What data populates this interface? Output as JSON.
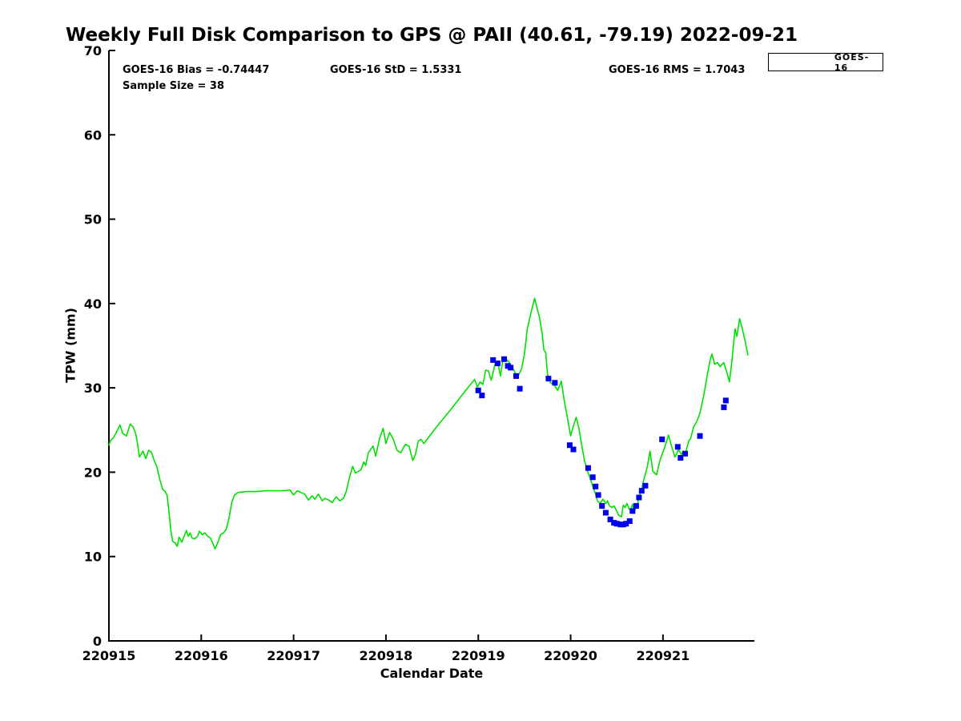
{
  "title": "Weekly Full Disk Comparison to GPS @ PAII (40.61, -79.19) 2022-09-21",
  "annotations": {
    "bias": "GOES-16 Bias = -0.74447",
    "std": "GOES-16 StD = 1.5331",
    "rms": "GOES-16 RMS = 1.7043",
    "sample_size": "Sample Size = 38"
  },
  "legend": {
    "entries": [
      {
        "label": "GOES-16",
        "marker": "square",
        "color": "#0000ee"
      }
    ]
  },
  "colors": {
    "gps_line": "#00e000",
    "goes16_marker": "#0000ee",
    "axis": "#000000",
    "background": "#ffffff"
  },
  "chart_data": {
    "type": "line",
    "title": "Weekly Full Disk Comparison to GPS @ PAII (40.61, -79.19) 2022-09-21",
    "xlabel": "Calendar Date",
    "ylabel": "TPW (mm)",
    "xlim": [
      220915,
      220921.99
    ],
    "ylim": [
      0,
      70
    ],
    "x_ticks": [
      220915,
      220916,
      220917,
      220918,
      220919,
      220920,
      220921
    ],
    "y_ticks": [
      0,
      10,
      20,
      30,
      40,
      50,
      60,
      70
    ],
    "grid": false,
    "legend_position": "top-right",
    "series": [
      {
        "name": "GPS",
        "type": "line",
        "color": "#00e000",
        "points": [
          [
            220915.0,
            23.2
          ],
          [
            220915.02,
            23.8
          ],
          [
            220915.05,
            24.1
          ],
          [
            220915.08,
            24.7
          ],
          [
            220915.12,
            25.6
          ],
          [
            220915.15,
            24.6
          ],
          [
            220915.19,
            24.3
          ],
          [
            220915.23,
            25.7
          ],
          [
            220915.26,
            25.4
          ],
          [
            220915.29,
            24.6
          ],
          [
            220915.31,
            23.4
          ],
          [
            220915.33,
            21.8
          ],
          [
            220915.37,
            22.5
          ],
          [
            220915.4,
            21.6
          ],
          [
            220915.43,
            22.6
          ],
          [
            220915.46,
            22.4
          ],
          [
            220915.49,
            21.4
          ],
          [
            220915.52,
            20.6
          ],
          [
            220915.55,
            19.2
          ],
          [
            220915.58,
            18.0
          ],
          [
            220915.61,
            17.7
          ],
          [
            220915.63,
            17.3
          ],
          [
            220915.65,
            15.4
          ],
          [
            220915.67,
            13.1
          ],
          [
            220915.69,
            11.8
          ],
          [
            220915.72,
            11.6
          ],
          [
            220915.74,
            11.2
          ],
          [
            220915.76,
            12.3
          ],
          [
            220915.79,
            11.7
          ],
          [
            220915.81,
            12.3
          ],
          [
            220915.84,
            13.1
          ],
          [
            220915.86,
            12.4
          ],
          [
            220915.88,
            12.8
          ],
          [
            220915.9,
            12.2
          ],
          [
            220915.93,
            12.1
          ],
          [
            220915.96,
            12.4
          ],
          [
            220915.98,
            13.0
          ],
          [
            220916.01,
            12.6
          ],
          [
            220916.04,
            12.8
          ],
          [
            220916.07,
            12.4
          ],
          [
            220916.1,
            12.2
          ],
          [
            220916.12,
            11.7
          ],
          [
            220916.15,
            10.9
          ],
          [
            220916.18,
            11.7
          ],
          [
            220916.21,
            12.6
          ],
          [
            220916.24,
            12.8
          ],
          [
            220916.27,
            13.2
          ],
          [
            220916.3,
            14.5
          ],
          [
            220916.33,
            16.4
          ],
          [
            220916.36,
            17.3
          ],
          [
            220916.4,
            17.6
          ],
          [
            220916.5,
            17.7
          ],
          [
            220916.6,
            17.7
          ],
          [
            220916.7,
            17.8
          ],
          [
            220916.8,
            17.8
          ],
          [
            220916.9,
            17.8
          ],
          [
            220916.96,
            17.9
          ],
          [
            220917.0,
            17.3
          ],
          [
            220917.04,
            17.8
          ],
          [
            220917.08,
            17.6
          ],
          [
            220917.12,
            17.4
          ],
          [
            220917.16,
            16.7
          ],
          [
            220917.2,
            17.2
          ],
          [
            220917.23,
            16.8
          ],
          [
            220917.27,
            17.4
          ],
          [
            220917.31,
            16.6
          ],
          [
            220917.34,
            16.9
          ],
          [
            220917.38,
            16.7
          ],
          [
            220917.42,
            16.4
          ],
          [
            220917.46,
            17.1
          ],
          [
            220917.5,
            16.6
          ],
          [
            220917.54,
            16.9
          ],
          [
            220917.57,
            17.7
          ],
          [
            220917.61,
            19.6
          ],
          [
            220917.64,
            20.7
          ],
          [
            220917.67,
            19.9
          ],
          [
            220917.7,
            20.1
          ],
          [
            220917.73,
            20.3
          ],
          [
            220917.76,
            21.2
          ],
          [
            220917.78,
            20.8
          ],
          [
            220917.81,
            22.3
          ],
          [
            220917.86,
            23.1
          ],
          [
            220917.89,
            21.9
          ],
          [
            220917.93,
            24.0
          ],
          [
            220917.97,
            25.2
          ],
          [
            220918.0,
            23.4
          ],
          [
            220918.04,
            24.7
          ],
          [
            220918.08,
            23.9
          ],
          [
            220918.12,
            22.6
          ],
          [
            220918.16,
            22.3
          ],
          [
            220918.21,
            23.3
          ],
          [
            220918.25,
            23.1
          ],
          [
            220918.29,
            21.4
          ],
          [
            220918.32,
            22.1
          ],
          [
            220918.35,
            23.7
          ],
          [
            220918.38,
            23.9
          ],
          [
            220918.41,
            23.4
          ],
          [
            220918.55,
            25.4
          ],
          [
            220918.7,
            27.4
          ],
          [
            220918.85,
            29.5
          ],
          [
            220918.96,
            31.0
          ],
          [
            220918.99,
            30.1
          ],
          [
            220919.02,
            30.7
          ],
          [
            220919.05,
            30.4
          ],
          [
            220919.08,
            32.1
          ],
          [
            220919.11,
            32.0
          ],
          [
            220919.14,
            30.9
          ],
          [
            220919.18,
            32.8
          ],
          [
            220919.21,
            33.1
          ],
          [
            220919.24,
            31.4
          ],
          [
            220919.27,
            33.6
          ],
          [
            220919.3,
            33.4
          ],
          [
            220919.33,
            33.1
          ],
          [
            220919.36,
            32.6
          ],
          [
            220919.39,
            32.0
          ],
          [
            220919.41,
            31.5
          ],
          [
            220919.44,
            31.6
          ],
          [
            220919.47,
            32.3
          ],
          [
            220919.5,
            34.0
          ],
          [
            220919.53,
            36.9
          ],
          [
            220919.57,
            38.9
          ],
          [
            220919.61,
            40.6
          ],
          [
            220919.64,
            39.3
          ],
          [
            220919.66,
            38.5
          ],
          [
            220919.69,
            36.6
          ],
          [
            220919.71,
            34.5
          ],
          [
            220919.73,
            34.2
          ],
          [
            220919.75,
            31.6
          ],
          [
            220919.78,
            30.6
          ],
          [
            220919.82,
            30.4
          ],
          [
            220919.86,
            29.7
          ],
          [
            220919.9,
            30.8
          ],
          [
            220919.93,
            28.5
          ],
          [
            220919.96,
            26.8
          ],
          [
            220920.0,
            24.3
          ],
          [
            220920.03,
            25.5
          ],
          [
            220920.06,
            26.5
          ],
          [
            220920.09,
            25.2
          ],
          [
            220920.12,
            23.2
          ],
          [
            220920.15,
            21.4
          ],
          [
            220920.18,
            20.2
          ],
          [
            220920.21,
            19.3
          ],
          [
            220920.24,
            18.3
          ],
          [
            220920.27,
            17.4
          ],
          [
            220920.29,
            16.6
          ],
          [
            220920.32,
            16.3
          ],
          [
            220920.35,
            16.8
          ],
          [
            220920.38,
            16.3
          ],
          [
            220920.4,
            16.6
          ],
          [
            220920.42,
            16.0
          ],
          [
            220920.45,
            15.8
          ],
          [
            220920.47,
            16.0
          ],
          [
            220920.49,
            15.6
          ],
          [
            220920.52,
            14.9
          ],
          [
            220920.55,
            14.7
          ],
          [
            220920.57,
            16.1
          ],
          [
            220920.59,
            15.8
          ],
          [
            220920.61,
            16.3
          ],
          [
            220920.63,
            15.7
          ],
          [
            220920.65,
            15.5
          ],
          [
            220920.67,
            16.2
          ],
          [
            220920.69,
            15.4
          ],
          [
            220920.72,
            16.0
          ],
          [
            220920.74,
            17.1
          ],
          [
            220920.77,
            18.0
          ],
          [
            220920.79,
            19.0
          ],
          [
            220920.83,
            20.6
          ],
          [
            220920.86,
            22.5
          ],
          [
            220920.89,
            20.1
          ],
          [
            220920.93,
            19.7
          ],
          [
            220920.97,
            21.5
          ],
          [
            220921.02,
            23.0
          ],
          [
            220921.06,
            24.4
          ],
          [
            220921.09,
            23.2
          ],
          [
            220921.13,
            21.8
          ],
          [
            220921.17,
            22.7
          ],
          [
            220921.2,
            22.1
          ],
          [
            220921.22,
            22.5
          ],
          [
            220921.24,
            22.1
          ],
          [
            220921.28,
            23.7
          ],
          [
            220921.3,
            24.0
          ],
          [
            220921.33,
            25.3
          ],
          [
            220921.37,
            26.1
          ],
          [
            220921.4,
            27.0
          ],
          [
            220921.44,
            29.0
          ],
          [
            220921.48,
            31.5
          ],
          [
            220921.51,
            33.3
          ],
          [
            220921.53,
            34.0
          ],
          [
            220921.56,
            32.8
          ],
          [
            220921.59,
            33.0
          ],
          [
            220921.62,
            32.5
          ],
          [
            220921.64,
            32.8
          ],
          [
            220921.66,
            33.0
          ],
          [
            220921.69,
            31.9
          ],
          [
            220921.72,
            30.7
          ],
          [
            220921.75,
            33.5
          ],
          [
            220921.78,
            37.0
          ],
          [
            220921.8,
            36.1
          ],
          [
            220921.83,
            38.2
          ],
          [
            220921.86,
            37.0
          ],
          [
            220921.89,
            35.5
          ],
          [
            220921.92,
            33.9
          ]
        ]
      },
      {
        "name": "GOES-16",
        "type": "scatter",
        "marker": "square",
        "marker_size": 7,
        "color": "#0000ee",
        "points": [
          [
            220919.0,
            29.7
          ],
          [
            220919.04,
            29.1
          ],
          [
            220919.16,
            33.3
          ],
          [
            220919.21,
            32.9
          ],
          [
            220919.28,
            33.4
          ],
          [
            220919.32,
            32.6
          ],
          [
            220919.35,
            32.4
          ],
          [
            220919.41,
            31.4
          ],
          [
            220919.45,
            29.9
          ],
          [
            220919.76,
            31.1
          ],
          [
            220919.83,
            30.6
          ],
          [
            220919.99,
            23.2
          ],
          [
            220920.03,
            22.7
          ],
          [
            220920.19,
            20.5
          ],
          [
            220920.24,
            19.4
          ],
          [
            220920.27,
            18.3
          ],
          [
            220920.3,
            17.3
          ],
          [
            220920.34,
            16.0
          ],
          [
            220920.38,
            15.2
          ],
          [
            220920.43,
            14.4
          ],
          [
            220920.47,
            14.0
          ],
          [
            220920.5,
            13.9
          ],
          [
            220920.54,
            13.8
          ],
          [
            220920.57,
            13.8
          ],
          [
            220920.6,
            13.9
          ],
          [
            220920.64,
            14.2
          ],
          [
            220920.67,
            15.4
          ],
          [
            220920.71,
            16.0
          ],
          [
            220920.74,
            17.0
          ],
          [
            220920.77,
            17.8
          ],
          [
            220920.81,
            18.4
          ],
          [
            220920.99,
            23.9
          ],
          [
            220921.16,
            23.0
          ],
          [
            220921.19,
            21.7
          ],
          [
            220921.24,
            22.2
          ],
          [
            220921.4,
            24.3
          ],
          [
            220921.66,
            27.7
          ],
          [
            220921.68,
            28.5
          ]
        ]
      }
    ]
  }
}
